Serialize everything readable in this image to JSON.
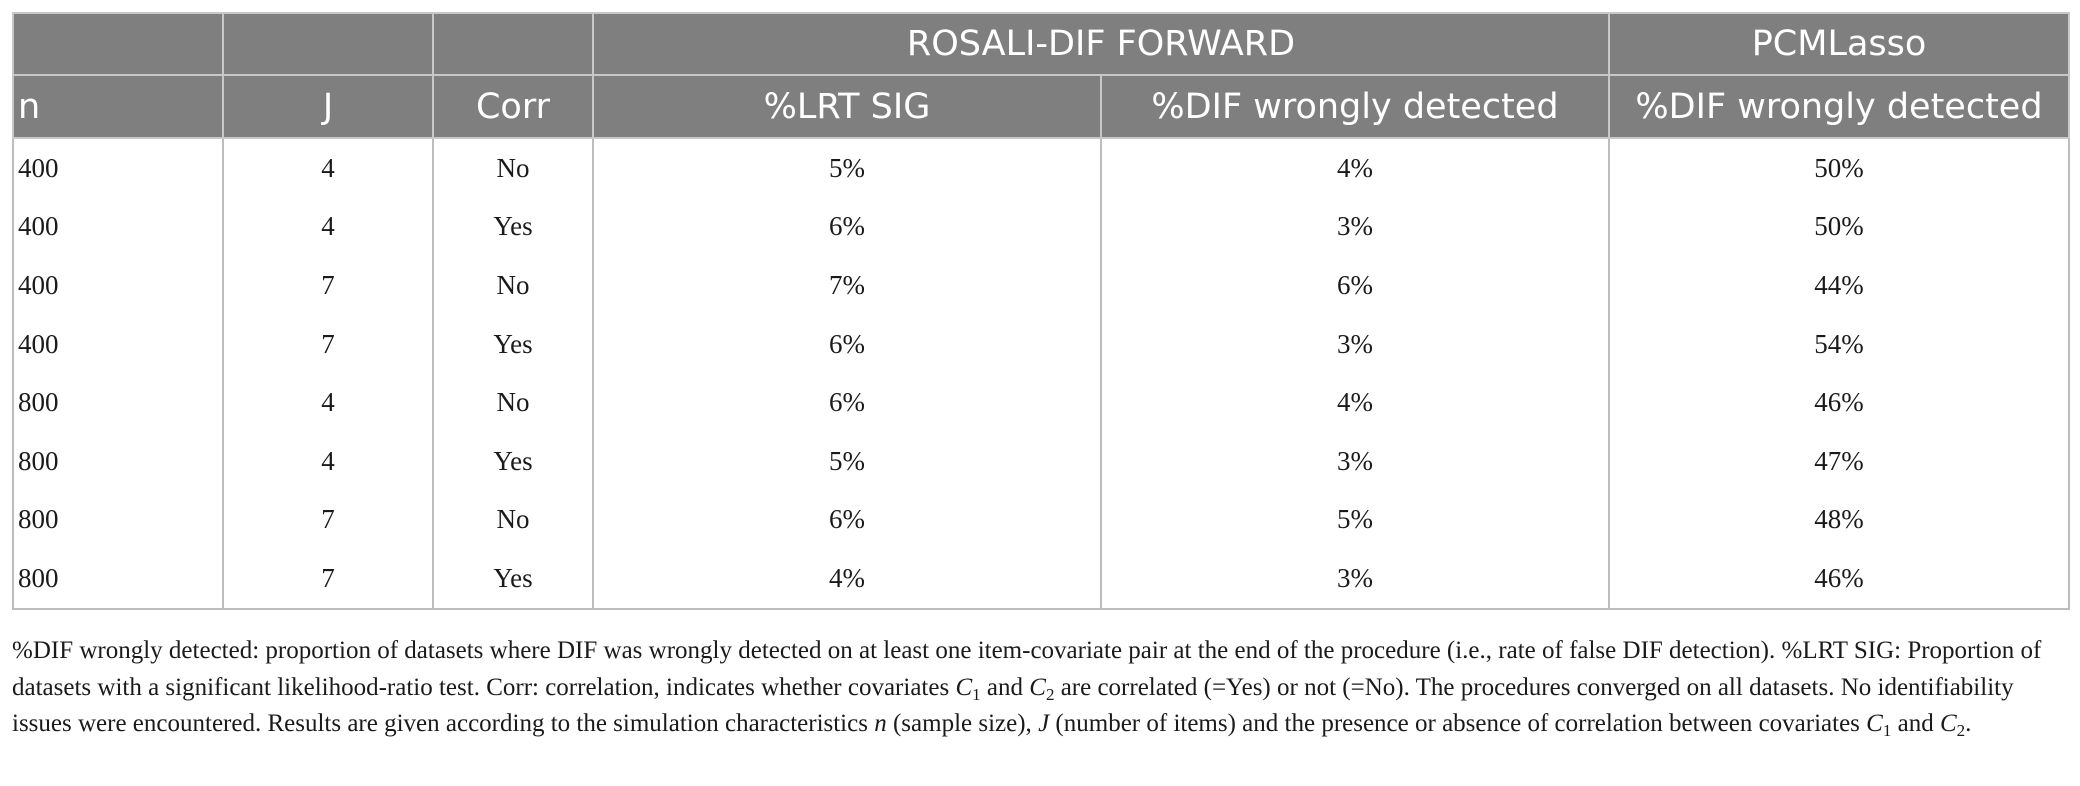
{
  "header": {
    "group_row": [
      "",
      "",
      "",
      "ROSALI-DIF FORWARD",
      "PCMLasso"
    ],
    "columns": [
      "n",
      "J",
      "Corr",
      "%LRT SIG",
      "%DIF wrongly detected",
      "%DIF wrongly detected"
    ]
  },
  "rows": [
    [
      "400",
      "4",
      "No",
      "5%",
      "4%",
      "50%"
    ],
    [
      "400",
      "4",
      "Yes",
      "6%",
      "3%",
      "50%"
    ],
    [
      "400",
      "7",
      "No",
      "7%",
      "6%",
      "44%"
    ],
    [
      "400",
      "7",
      "Yes",
      "6%",
      "3%",
      "54%"
    ],
    [
      "800",
      "4",
      "No",
      "6%",
      "4%",
      "46%"
    ],
    [
      "800",
      "4",
      "Yes",
      "5%",
      "3%",
      "47%"
    ],
    [
      "800",
      "7",
      "No",
      "6%",
      "5%",
      "48%"
    ],
    [
      "800",
      "7",
      "Yes",
      "4%",
      "3%",
      "46%"
    ]
  ],
  "footnote": {
    "s1": "%DIF wrongly detected: proportion of datasets where DIF was wrongly detected on at least one item-covariate pair at the end of the procedure (i.e., rate of false DIF detection). %LRT SIG: Proportion of datasets with a significant likelihood-ratio test. Corr: correlation, indicates whether covariates ",
    "c1": "C",
    "c1_sub": "1",
    "s2": " and ",
    "c2": "C",
    "c2_sub": "2",
    "s3": " are correlated (=Yes) or not (=No). The procedures converged on all datasets. No identifiability issues were encountered. Results are given according to the simulation characteristics ",
    "n": "n",
    "s4": " (sample size), ",
    "j": "J",
    "s5": " (number of items) and the presence or absence of correlation between covariates ",
    "c3": "C",
    "c3_sub": "1",
    "s6": " and ",
    "c4": "C",
    "c4_sub": "2",
    "s7": "."
  }
}
